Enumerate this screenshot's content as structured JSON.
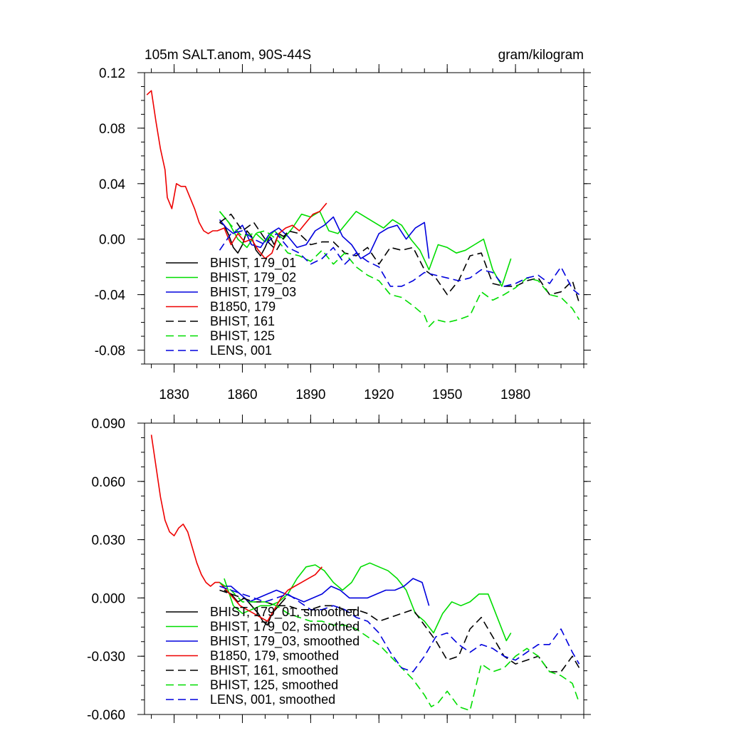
{
  "chart_data": [
    {
      "type": "line",
      "title": "105m SALT.anom, 90S-44S",
      "units": "gram/kilogram",
      "xlim": [
        1817,
        2010
      ],
      "ylim": [
        -0.09,
        0.12
      ],
      "yticks": [
        "0.12",
        "0.08",
        "0.04",
        "0.00",
        "-0.04",
        "-0.08"
      ],
      "ytick_values": [
        0.12,
        0.08,
        0.04,
        0.0,
        -0.04,
        -0.08
      ],
      "xticks": [
        "1830",
        "1860",
        "1890",
        "1920",
        "1950",
        "1980"
      ],
      "xtick_values": [
        1830,
        1860,
        1890,
        1920,
        1950,
        1980
      ],
      "show_xtick_labels": true,
      "legend_position": "bottom-left",
      "series": [
        {
          "name": "BHIST, 179_01",
          "color": "#000000",
          "dash": "solid",
          "x": [
            1850,
            1852,
            1854,
            1856,
            1858,
            1860,
            1862,
            1864,
            1866,
            1868,
            1870,
            1872,
            1874,
            1876,
            1878,
            1880
          ],
          "y": [
            0.012,
            0.01,
            0.003,
            -0.006,
            -0.01,
            -0.004,
            0.006,
            0.002,
            -0.008,
            -0.012,
            -0.006,
            0.002,
            -0.004,
            0.004,
            0.002,
            0.004
          ]
        },
        {
          "name": "BHIST, 179_02",
          "color": "#00dd00",
          "dash": "solid",
          "x": [
            1850,
            1854,
            1858,
            1862,
            1866,
            1870,
            1874,
            1878,
            1882,
            1886,
            1890,
            1894,
            1898,
            1902,
            1906,
            1910,
            1914,
            1918,
            1922,
            1926,
            1930,
            1934,
            1938,
            1942,
            1946,
            1950,
            1954,
            1958,
            1962,
            1966,
            1970,
            1974,
            1978
          ],
          "y": [
            0.02,
            0.012,
            0.0,
            -0.006,
            0.004,
            -0.002,
            0.006,
            0.0,
            0.008,
            0.018,
            0.016,
            0.02,
            0.006,
            0.004,
            0.012,
            0.02,
            0.016,
            0.012,
            0.008,
            0.014,
            0.01,
            0.0,
            -0.008,
            -0.022,
            -0.004,
            -0.006,
            -0.01,
            -0.008,
            -0.004,
            0.0,
            -0.022,
            -0.034,
            -0.014
          ]
        },
        {
          "name": "BHIST, 179_03",
          "color": "#0000dd",
          "dash": "solid",
          "x": [
            1850,
            1853,
            1856,
            1860,
            1864,
            1868,
            1872,
            1876,
            1880,
            1884,
            1888,
            1892,
            1896,
            1900,
            1904,
            1908,
            1912,
            1916,
            1920,
            1924,
            1928,
            1932,
            1936,
            1940,
            1942
          ],
          "y": [
            0.014,
            0.008,
            0.004,
            0.01,
            -0.004,
            -0.006,
            0.004,
            0.008,
            0.002,
            -0.006,
            -0.004,
            0.006,
            0.01,
            0.016,
            0.002,
            -0.004,
            -0.014,
            -0.01,
            0.004,
            0.008,
            0.01,
            0.0,
            0.008,
            0.012,
            -0.014
          ]
        },
        {
          "name": "B1850, 179",
          "color": "#ee0000",
          "dash": "solid",
          "x": [
            1818,
            1820,
            1822,
            1824,
            1826,
            1827,
            1829,
            1831,
            1833,
            1835,
            1837,
            1839,
            1841,
            1843,
            1845,
            1847,
            1849,
            1852,
            1855,
            1858,
            1861,
            1864,
            1867,
            1870,
            1873,
            1876,
            1879,
            1882,
            1885,
            1888,
            1891,
            1894,
            1897
          ],
          "y": [
            0.104,
            0.107,
            0.085,
            0.065,
            0.05,
            0.03,
            0.022,
            0.04,
            0.038,
            0.038,
            0.03,
            0.022,
            0.012,
            0.006,
            0.004,
            0.006,
            0.006,
            0.008,
            -0.004,
            0.004,
            -0.002,
            0.0,
            -0.008,
            -0.014,
            -0.01,
            0.004,
            0.008,
            0.01,
            0.006,
            0.012,
            0.018,
            0.02,
            0.026
          ]
        },
        {
          "name": "BHIST, 161",
          "color": "#000000",
          "dash": "dashed",
          "x": [
            1850,
            1855,
            1860,
            1865,
            1870,
            1875,
            1880,
            1885,
            1890,
            1895,
            1900,
            1905,
            1910,
            1915,
            1920,
            1925,
            1930,
            1935,
            1940,
            1945,
            1950,
            1955,
            1960,
            1965,
            1970,
            1975,
            1980,
            1985,
            1990,
            1995,
            2000,
            2005,
            2008
          ],
          "y": [
            0.012,
            0.018,
            0.006,
            0.012,
            0.0,
            -0.008,
            0.006,
            0.004,
            -0.004,
            -0.002,
            -0.002,
            -0.01,
            -0.012,
            -0.006,
            -0.018,
            -0.006,
            -0.008,
            -0.006,
            -0.022,
            -0.028,
            -0.04,
            -0.03,
            -0.012,
            -0.01,
            -0.032,
            -0.034,
            -0.034,
            -0.03,
            -0.028,
            -0.04,
            -0.038,
            -0.03,
            -0.046
          ]
        },
        {
          "name": "BHIST, 125",
          "color": "#00dd00",
          "dash": "dashed",
          "x": [
            1850,
            1855,
            1860,
            1865,
            1870,
            1875,
            1880,
            1885,
            1890,
            1895,
            1900,
            1905,
            1910,
            1915,
            1920,
            1925,
            1930,
            1935,
            1940,
            1942,
            1945,
            1950,
            1955,
            1960,
            1965,
            1970,
            1975,
            1980,
            1985,
            1990,
            1995,
            2000,
            2005,
            2008
          ],
          "y": [
            0.02,
            0.01,
            0.002,
            0.004,
            0.006,
            0.0,
            -0.01,
            -0.012,
            -0.016,
            -0.008,
            -0.018,
            -0.01,
            -0.02,
            -0.026,
            -0.03,
            -0.04,
            -0.042,
            -0.048,
            -0.055,
            -0.063,
            -0.058,
            -0.06,
            -0.058,
            -0.055,
            -0.038,
            -0.044,
            -0.04,
            -0.035,
            -0.028,
            -0.03,
            -0.04,
            -0.042,
            -0.05,
            -0.058
          ]
        },
        {
          "name": "LENS, 001",
          "color": "#0000dd",
          "dash": "dashed",
          "x": [
            1850,
            1855,
            1860,
            1865,
            1870,
            1875,
            1880,
            1885,
            1890,
            1895,
            1900,
            1905,
            1910,
            1915,
            1920,
            1925,
            1930,
            1935,
            1940,
            1945,
            1950,
            1955,
            1960,
            1965,
            1970,
            1975,
            1980,
            1985,
            1990,
            1995,
            2000,
            2005,
            2008
          ],
          "y": [
            -0.008,
            0.004,
            0.006,
            0.0,
            -0.004,
            0.004,
            -0.006,
            -0.01,
            -0.018,
            -0.014,
            -0.006,
            -0.018,
            -0.01,
            -0.016,
            -0.02,
            -0.034,
            -0.034,
            -0.03,
            -0.024,
            -0.026,
            -0.028,
            -0.03,
            -0.028,
            -0.022,
            -0.024,
            -0.034,
            -0.032,
            -0.028,
            -0.026,
            -0.032,
            -0.02,
            -0.036,
            -0.04
          ]
        }
      ]
    },
    {
      "type": "line",
      "title": "",
      "units": "",
      "xlim": [
        1817,
        2010
      ],
      "ylim": [
        -0.06,
        0.09
      ],
      "yticks": [
        "0.090",
        "0.060",
        "0.030",
        "0.000",
        "-0.030",
        "-0.060"
      ],
      "ytick_values": [
        0.09,
        0.06,
        0.03,
        0.0,
        -0.03,
        -0.06
      ],
      "xticks": [
        "1830",
        "1860",
        "1890",
        "1920",
        "1950",
        "1980"
      ],
      "xtick_values": [
        1830,
        1860,
        1890,
        1920,
        1950,
        1980
      ],
      "show_xtick_labels": false,
      "legend_position": "bottom-left",
      "series": [
        {
          "name": "BHIST, 179_01, smoothed",
          "color": "#000000",
          "dash": "solid",
          "x": [
            1852,
            1855,
            1858,
            1861,
            1864,
            1867,
            1869,
            1871,
            1873,
            1876,
            1879
          ],
          "y": [
            0.004,
            0.002,
            -0.002,
            0.0,
            -0.004,
            -0.008,
            -0.012,
            -0.014,
            -0.008,
            -0.004,
            0.0
          ]
        },
        {
          "name": "BHIST, 179_02, smoothed",
          "color": "#00dd00",
          "dash": "solid",
          "x": [
            1852,
            1856,
            1860,
            1864,
            1868,
            1872,
            1876,
            1880,
            1884,
            1888,
            1892,
            1896,
            1900,
            1904,
            1908,
            1912,
            1916,
            1920,
            1924,
            1928,
            1932,
            1936,
            1940,
            1944,
            1948,
            1952,
            1956,
            1960,
            1964,
            1968,
            1972,
            1976,
            1978
          ],
          "y": [
            0.01,
            -0.004,
            -0.008,
            -0.006,
            -0.004,
            -0.004,
            -0.002,
            0.002,
            0.01,
            0.016,
            0.017,
            0.014,
            0.008,
            0.004,
            0.008,
            0.016,
            0.018,
            0.016,
            0.014,
            0.01,
            0.004,
            -0.008,
            -0.012,
            -0.018,
            -0.008,
            -0.002,
            -0.004,
            -0.002,
            0.002,
            0.002,
            -0.01,
            -0.022,
            -0.018
          ]
        },
        {
          "name": "BHIST, 179_03, smoothed",
          "color": "#0000dd",
          "dash": "solid",
          "x": [
            1851,
            1855,
            1859,
            1863,
            1867,
            1871,
            1875,
            1879,
            1883,
            1887,
            1891,
            1895,
            1899,
            1903,
            1907,
            1911,
            1915,
            1919,
            1923,
            1927,
            1931,
            1935,
            1939,
            1942
          ],
          "y": [
            0.006,
            0.006,
            0.002,
            -0.002,
            0.0,
            0.002,
            0.004,
            0.002,
            0.0,
            -0.002,
            0.0,
            0.002,
            0.006,
            0.004,
            0.0,
            0.0,
            0.0,
            0.002,
            0.004,
            0.004,
            0.006,
            0.01,
            0.008,
            -0.004
          ]
        },
        {
          "name": "B1850, 179, smoothed",
          "color": "#ee0000",
          "dash": "solid",
          "x": [
            1820,
            1822,
            1824,
            1826,
            1828,
            1830,
            1832,
            1834,
            1836,
            1838,
            1840,
            1842,
            1844,
            1846,
            1848,
            1850,
            1853,
            1856,
            1859,
            1862,
            1865,
            1868,
            1871,
            1874,
            1877,
            1880,
            1883,
            1886,
            1889,
            1892,
            1895
          ],
          "y": [
            0.084,
            0.068,
            0.052,
            0.04,
            0.034,
            0.032,
            0.036,
            0.038,
            0.034,
            0.026,
            0.018,
            0.012,
            0.008,
            0.006,
            0.008,
            0.008,
            0.004,
            0.0,
            -0.004,
            -0.006,
            -0.008,
            -0.01,
            -0.012,
            -0.006,
            0.0,
            0.004,
            0.006,
            0.008,
            0.01,
            0.012,
            0.016
          ]
        },
        {
          "name": "BHIST, 161, smoothed",
          "color": "#000000",
          "dash": "dashed",
          "x": [
            1850,
            1855,
            1860,
            1865,
            1870,
            1875,
            1880,
            1885,
            1890,
            1895,
            1900,
            1905,
            1910,
            1915,
            1920,
            1925,
            1930,
            1935,
            1940,
            1945,
            1950,
            1955,
            1960,
            1965,
            1970,
            1975,
            1980,
            1985,
            1990,
            1995,
            2000,
            2005,
            2008
          ],
          "y": [
            0.004,
            0.002,
            0.0,
            -0.002,
            -0.002,
            -0.004,
            -0.004,
            -0.006,
            -0.006,
            -0.004,
            -0.004,
            -0.006,
            -0.006,
            -0.008,
            -0.012,
            -0.01,
            -0.008,
            -0.006,
            -0.014,
            -0.022,
            -0.032,
            -0.03,
            -0.016,
            -0.01,
            -0.02,
            -0.03,
            -0.034,
            -0.032,
            -0.03,
            -0.038,
            -0.038,
            -0.03,
            -0.036
          ]
        },
        {
          "name": "BHIST, 125, smoothed",
          "color": "#00dd00",
          "dash": "dashed",
          "x": [
            1850,
            1855,
            1860,
            1865,
            1870,
            1875,
            1880,
            1885,
            1890,
            1895,
            1900,
            1905,
            1910,
            1915,
            1920,
            1925,
            1930,
            1935,
            1940,
            1943,
            1946,
            1950,
            1955,
            1960,
            1965,
            1970,
            1975,
            1980,
            1985,
            1990,
            1995,
            2000,
            2005,
            2008
          ],
          "y": [
            0.008,
            0.004,
            -0.002,
            -0.002,
            -0.002,
            -0.004,
            -0.008,
            -0.01,
            -0.012,
            -0.012,
            -0.014,
            -0.014,
            -0.016,
            -0.02,
            -0.024,
            -0.03,
            -0.036,
            -0.042,
            -0.05,
            -0.056,
            -0.054,
            -0.048,
            -0.056,
            -0.058,
            -0.034,
            -0.038,
            -0.036,
            -0.03,
            -0.026,
            -0.03,
            -0.038,
            -0.04,
            -0.044,
            -0.054
          ]
        },
        {
          "name": "LENS, 001, smoothed",
          "color": "#0000dd",
          "dash": "dashed",
          "x": [
            1850,
            1855,
            1860,
            1865,
            1870,
            1875,
            1880,
            1885,
            1890,
            1895,
            1900,
            1905,
            1910,
            1915,
            1920,
            1925,
            1930,
            1935,
            1940,
            1945,
            1950,
            1955,
            1960,
            1965,
            1970,
            1975,
            1980,
            1985,
            1990,
            1995,
            2000,
            2005,
            2008
          ],
          "y": [
            0.006,
            0.004,
            0.002,
            0.0,
            -0.002,
            0.0,
            0.002,
            -0.002,
            -0.006,
            -0.006,
            -0.004,
            -0.006,
            -0.01,
            -0.012,
            -0.018,
            -0.028,
            -0.036,
            -0.038,
            -0.03,
            -0.02,
            -0.018,
            -0.024,
            -0.028,
            -0.024,
            -0.026,
            -0.03,
            -0.032,
            -0.028,
            -0.024,
            -0.024,
            -0.016,
            -0.028,
            -0.034
          ]
        }
      ]
    }
  ]
}
